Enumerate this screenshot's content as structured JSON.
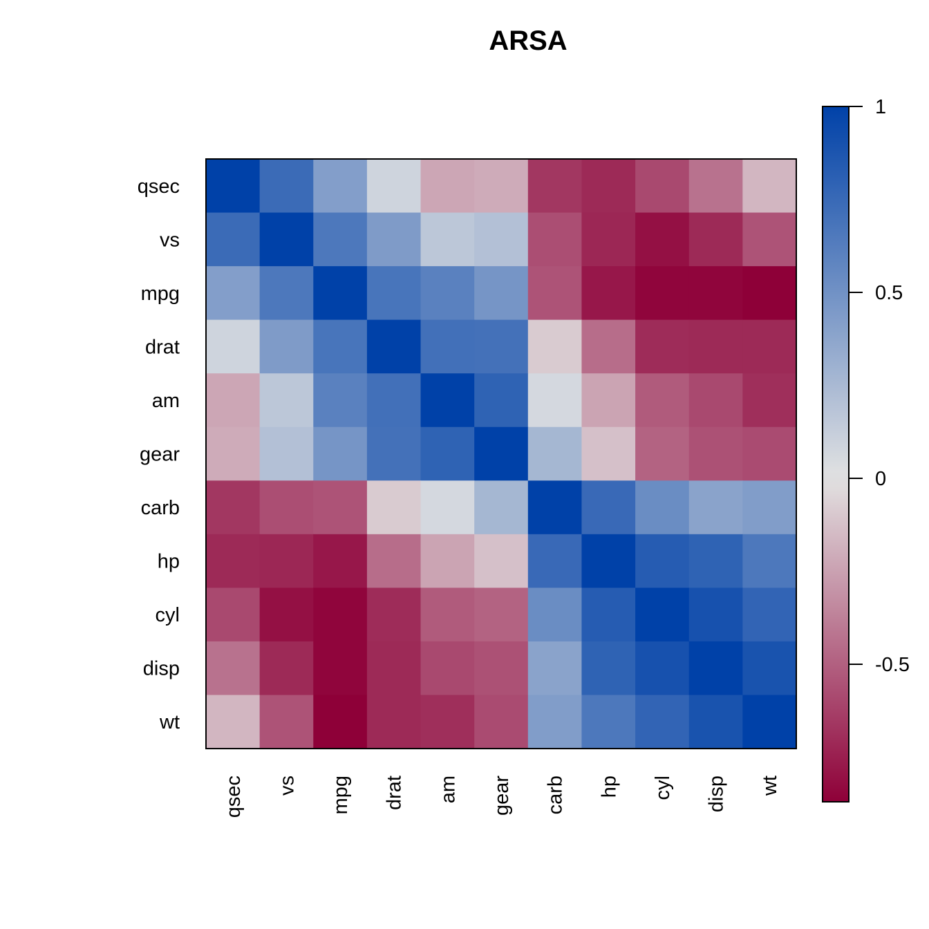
{
  "chart_data": {
    "type": "heatmap",
    "title": "ARSA",
    "xlabel": "",
    "ylabel": "",
    "rows": [
      "qsec",
      "vs",
      "mpg",
      "drat",
      "am",
      "gear",
      "carb",
      "hp",
      "cyl",
      "disp",
      "wt"
    ],
    "columns": [
      "qsec",
      "vs",
      "mpg",
      "drat",
      "am",
      "gear",
      "carb",
      "hp",
      "cyl",
      "disp",
      "wt"
    ],
    "values": [
      [
        1.0,
        0.74,
        0.42,
        0.09,
        -0.23,
        -0.21,
        -0.66,
        -0.71,
        -0.59,
        -0.43,
        -0.17
      ],
      [
        0.74,
        1.0,
        0.66,
        0.44,
        0.17,
        0.21,
        -0.57,
        -0.72,
        -0.81,
        -0.71,
        -0.55
      ],
      [
        0.42,
        0.66,
        1.0,
        0.68,
        0.6,
        0.48,
        -0.55,
        -0.78,
        -0.85,
        -0.85,
        -0.87
      ],
      [
        0.09,
        0.44,
        0.68,
        1.0,
        0.71,
        0.7,
        -0.09,
        -0.45,
        -0.7,
        -0.71,
        -0.71
      ],
      [
        -0.23,
        0.17,
        0.6,
        0.71,
        1.0,
        0.79,
        0.06,
        -0.24,
        -0.52,
        -0.59,
        -0.69
      ],
      [
        -0.21,
        0.21,
        0.48,
        0.7,
        0.79,
        1.0,
        0.27,
        -0.13,
        -0.49,
        -0.56,
        -0.58
      ],
      [
        -0.66,
        -0.57,
        -0.55,
        -0.09,
        0.06,
        0.27,
        1.0,
        0.75,
        0.53,
        0.39,
        0.43
      ],
      [
        -0.71,
        -0.72,
        -0.78,
        -0.45,
        -0.24,
        -0.13,
        0.75,
        1.0,
        0.83,
        0.79,
        0.66
      ],
      [
        -0.59,
        -0.81,
        -0.85,
        -0.7,
        -0.52,
        -0.49,
        0.53,
        0.83,
        1.0,
        0.9,
        0.78
      ],
      [
        -0.43,
        -0.71,
        -0.85,
        -0.71,
        -0.59,
        -0.56,
        0.39,
        0.79,
        0.9,
        1.0,
        0.89
      ],
      [
        -0.17,
        -0.55,
        -0.87,
        -0.71,
        -0.69,
        -0.58,
        0.43,
        0.66,
        0.78,
        0.89,
        1.0
      ]
    ],
    "colorbar": {
      "min": -0.87,
      "max": 1.0,
      "ticks": [
        1,
        0.5,
        0,
        -0.5
      ],
      "tick_labels": [
        "1",
        "0.5",
        "0",
        "-0.5"
      ],
      "low_color": "#8e0038",
      "mid_color": "#e2e2e2",
      "high_color": "#0041a8"
    }
  }
}
